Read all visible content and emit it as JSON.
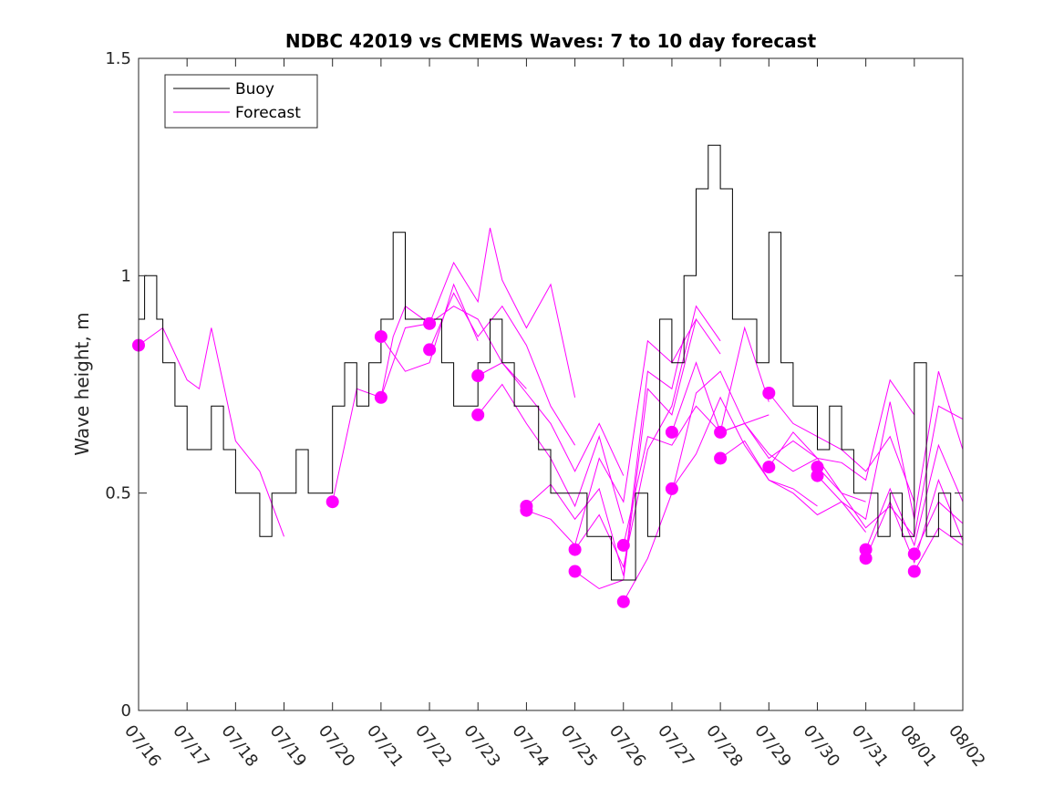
{
  "chart_data": {
    "type": "line",
    "title": "NDBC 42019 vs CMEMS Waves: 7 to 10 day forecast",
    "ylabel": "Wave height, m",
    "xlabel": "",
    "ylim": [
      0,
      1.5
    ],
    "yticks": [
      0,
      0.5,
      1,
      1.5
    ],
    "ytick_labels": [
      "0",
      "0.5",
      "1",
      "1.5"
    ],
    "xlim": [
      "07/16",
      "08/02"
    ],
    "xtick_labels": [
      "07/16",
      "07/17",
      "07/18",
      "07/19",
      "07/20",
      "07/21",
      "07/22",
      "07/23",
      "07/24",
      "07/25",
      "07/26",
      "07/27",
      "07/28",
      "07/29",
      "07/30",
      "07/31",
      "08/01",
      "08/02"
    ],
    "legend": {
      "position": "top-left",
      "entries": [
        {
          "name": "Buoy",
          "color": "#000000"
        },
        {
          "name": "Forecast",
          "color": "#ff00ff"
        }
      ]
    },
    "colors": {
      "buoy": "#000000",
      "forecast": "#ff00ff"
    },
    "buoy": {
      "name": "Buoy",
      "x": [
        "07/16 00:00",
        "07/16 03:00",
        "07/16 06:00",
        "07/16 09:00",
        "07/16 12:00",
        "07/16 15:00",
        "07/16 18:00",
        "07/17 00:00",
        "07/17 06:00",
        "07/17 12:00",
        "07/17 18:00",
        "07/18 00:00",
        "07/18 06:00",
        "07/18 12:00",
        "07/18 18:00",
        "07/19 00:00",
        "07/19 06:00",
        "07/19 12:00",
        "07/19 18:00",
        "07/20 00:00",
        "07/20 06:00",
        "07/20 12:00",
        "07/20 18:00",
        "07/21 00:00",
        "07/21 06:00",
        "07/21 12:00",
        "07/21 18:00",
        "07/22 00:00",
        "07/22 06:00",
        "07/22 12:00",
        "07/22 18:00",
        "07/23 00:00",
        "07/23 06:00",
        "07/23 12:00",
        "07/23 18:00",
        "07/24 00:00",
        "07/24 06:00",
        "07/24 12:00",
        "07/24 18:00",
        "07/25 00:00",
        "07/25 06:00",
        "07/25 12:00",
        "07/25 18:00",
        "07/26 00:00",
        "07/26 06:00",
        "07/26 12:00",
        "07/26 18:00",
        "07/27 00:00",
        "07/27 06:00",
        "07/27 12:00",
        "07/27 18:00",
        "07/28 00:00",
        "07/28 06:00",
        "07/28 12:00",
        "07/28 18:00",
        "07/29 00:00",
        "07/29 06:00",
        "07/29 12:00",
        "07/29 18:00",
        "07/30 00:00",
        "07/30 06:00",
        "07/30 12:00",
        "07/30 18:00",
        "07/31 00:00",
        "07/31 06:00",
        "07/31 12:00",
        "07/31 18:00",
        "08/01 00:00",
        "08/01 06:00",
        "08/01 12:00",
        "08/01 18:00",
        "08/02 00:00"
      ],
      "y": [
        0.9,
        1.0,
        1.0,
        0.9,
        0.8,
        0.8,
        0.7,
        0.6,
        0.6,
        0.7,
        0.6,
        0.5,
        0.5,
        0.4,
        0.5,
        0.5,
        0.6,
        0.5,
        0.5,
        0.7,
        0.8,
        0.7,
        0.8,
        0.9,
        1.1,
        0.9,
        0.9,
        0.9,
        0.8,
        0.7,
        0.7,
        0.8,
        0.9,
        0.8,
        0.7,
        0.7,
        0.6,
        0.5,
        0.5,
        0.5,
        0.4,
        0.4,
        0.3,
        0.3,
        0.5,
        0.4,
        0.9,
        0.8,
        1.0,
        1.2,
        1.3,
        1.2,
        0.9,
        0.9,
        0.8,
        1.1,
        0.8,
        0.7,
        0.7,
        0.6,
        0.7,
        0.6,
        0.5,
        0.5,
        0.4,
        0.5,
        0.4,
        0.8,
        0.4,
        0.5,
        0.4,
        0.3
      ]
    },
    "forecast_series": [
      {
        "x": [
          "07/16 00:00",
          "07/16 12:00",
          "07/17 00:00",
          "07/17 06:00",
          "07/17 12:00",
          "07/18 00:00",
          "07/18 12:00",
          "07/19 00:00"
        ],
        "y": [
          0.84,
          0.88,
          0.76,
          0.74,
          0.88,
          0.62,
          0.55,
          0.4
        ],
        "marker_y": 0.84
      },
      {
        "x": [
          "07/20 00:00",
          "07/20 12:00",
          "07/21 00:00",
          "07/21 06:00",
          "07/21 12:00",
          "07/22 00:00"
        ],
        "y": [
          0.48,
          0.74,
          0.72,
          0.86,
          0.93,
          0.89
        ],
        "marker_y": 0.48
      },
      {
        "x": [
          "07/21 00:00",
          "07/21 12:00",
          "07/22 00:00",
          "07/22 12:00",
          "07/23 00:00",
          "07/23 12:00",
          "07/24 00:00"
        ],
        "y": [
          0.72,
          0.88,
          0.89,
          0.93,
          0.9,
          0.8,
          0.74
        ],
        "marker_y": 0.72
      },
      {
        "x": [
          "07/21 00:00",
          "07/21 12:00",
          "07/22 00:00",
          "07/22 12:00",
          "07/23 00:00"
        ],
        "y": [
          0.86,
          0.78,
          0.8,
          0.98,
          0.85
        ],
        "marker_y": 0.86
      },
      {
        "x": [
          "07/22 00:00",
          "07/22 12:00",
          "07/23 00:00",
          "07/23 06:00",
          "07/23 12:00",
          "07/24 00:00",
          "07/24 12:00",
          "07/25 00:00"
        ],
        "y": [
          0.89,
          1.03,
          0.94,
          1.11,
          0.99,
          0.88,
          0.98,
          0.72
        ],
        "marker_y": 0.89
      },
      {
        "x": [
          "07/22 00:00",
          "07/22 12:00",
          "07/23 00:00",
          "07/23 12:00",
          "07/24 00:00",
          "07/24 12:00",
          "07/25 00:00"
        ],
        "y": [
          0.83,
          0.96,
          0.86,
          0.93,
          0.84,
          0.7,
          0.61
        ],
        "marker_y": 0.83
      },
      {
        "x": [
          "07/23 00:00",
          "07/23 12:00",
          "07/24 00:00",
          "07/24 12:00",
          "07/25 00:00",
          "07/25 12:00",
          "07/26 00:00"
        ],
        "y": [
          0.77,
          0.8,
          0.73,
          0.66,
          0.55,
          0.66,
          0.54
        ],
        "marker_y": 0.77
      },
      {
        "x": [
          "07/23 00:00",
          "07/23 12:00",
          "07/24 00:00",
          "07/24 12:00",
          "07/25 00:00",
          "07/25 12:00",
          "07/26 00:00"
        ],
        "y": [
          0.68,
          0.75,
          0.66,
          0.58,
          0.47,
          0.63,
          0.43
        ],
        "marker_y": 0.68
      },
      {
        "x": [
          "07/24 00:00",
          "07/24 12:00",
          "07/25 00:00",
          "07/25 12:00",
          "07/26 00:00",
          "07/26 12:00",
          "07/27 00:00",
          "07/27 06:00"
        ],
        "y": [
          0.47,
          0.52,
          0.44,
          0.51,
          0.31,
          0.78,
          0.74,
          0.86
        ],
        "marker_y": 0.47
      },
      {
        "x": [
          "07/24 00:00",
          "07/24 12:00",
          "07/25 00:00",
          "07/25 12:00",
          "07/26 00:00",
          "07/26 12:00",
          "07/27 00:00",
          "07/27 12:00"
        ],
        "y": [
          0.46,
          0.44,
          0.38,
          0.58,
          0.48,
          0.85,
          0.8,
          0.9
        ],
        "marker_y": 0.46
      },
      {
        "x": [
          "07/25 00:00",
          "07/25 12:00",
          "07/26 00:00",
          "07/26 12:00",
          "07/27 00:00",
          "07/27 12:00",
          "07/28 00:00"
        ],
        "y": [
          0.37,
          0.45,
          0.33,
          0.6,
          0.7,
          0.93,
          0.85
        ],
        "marker_y": 0.37
      },
      {
        "x": [
          "07/25 00:00",
          "07/25 12:00",
          "07/26 00:00",
          "07/26 12:00",
          "07/27 00:00",
          "07/27 12:00",
          "07/28 00:00"
        ],
        "y": [
          0.32,
          0.28,
          0.3,
          0.74,
          0.68,
          0.9,
          0.82
        ],
        "marker_y": 0.32
      },
      {
        "x": [
          "07/26 00:00",
          "07/26 12:00",
          "07/27 00:00",
          "07/27 12:00",
          "07/28 00:00",
          "07/28 12:00",
          "07/29 00:00"
        ],
        "y": [
          0.38,
          0.63,
          0.61,
          0.7,
          0.64,
          0.88,
          0.71
        ],
        "marker_y": 0.38
      },
      {
        "x": [
          "07/26 00:00",
          "07/26 12:00",
          "07/27 00:00",
          "07/27 12:00",
          "07/28 00:00",
          "07/28 12:00",
          "07/29 00:00"
        ],
        "y": [
          0.25,
          0.35,
          0.5,
          0.73,
          0.78,
          0.66,
          0.68
        ],
        "marker_y": 0.25
      },
      {
        "x": [
          "07/27 00:00",
          "07/27 12:00",
          "07/28 00:00",
          "07/28 12:00",
          "07/29 00:00",
          "07/29 12:00",
          "07/30 00:00"
        ],
        "y": [
          0.64,
          0.8,
          0.64,
          0.66,
          0.58,
          0.62,
          0.58
        ],
        "marker_y": 0.64
      },
      {
        "x": [
          "07/27 00:00",
          "07/27 12:00",
          "07/28 00:00",
          "07/28 12:00",
          "07/29 00:00",
          "07/29 12:00",
          "07/30 00:00"
        ],
        "y": [
          0.51,
          0.59,
          0.72,
          0.61,
          0.53,
          0.51,
          0.47
        ],
        "marker_y": 0.51
      },
      {
        "x": [
          "07/28 00:00",
          "07/28 12:00",
          "07/29 00:00",
          "07/29 12:00",
          "07/30 00:00",
          "07/30 12:00",
          "07/31 00:00"
        ],
        "y": [
          0.64,
          0.66,
          0.59,
          0.55,
          0.58,
          0.5,
          0.48
        ],
        "marker_y": 0.64
      },
      {
        "x": [
          "07/28 00:00",
          "07/28 12:00",
          "07/29 00:00",
          "07/29 12:00",
          "07/30 00:00",
          "07/30 12:00",
          "07/31 00:00"
        ],
        "y": [
          0.58,
          0.62,
          0.53,
          0.5,
          0.45,
          0.48,
          0.41
        ],
        "marker_y": 0.58
      },
      {
        "x": [
          "07/29 00:00",
          "07/29 12:00",
          "07/30 00:00",
          "07/30 12:00",
          "07/31 00:00",
          "07/31 12:00",
          "08/01 00:00"
        ],
        "y": [
          0.73,
          0.66,
          0.63,
          0.6,
          0.55,
          0.63,
          0.48
        ],
        "marker_y": 0.73
      },
      {
        "x": [
          "07/29 00:00",
          "07/29 12:00",
          "07/30 00:00",
          "07/30 12:00",
          "07/31 00:00",
          "07/31 12:00",
          "08/01 00:00"
        ],
        "y": [
          0.56,
          0.64,
          0.58,
          0.57,
          0.53,
          0.76,
          0.68
        ],
        "marker_y": 0.56
      },
      {
        "x": [
          "07/30 00:00",
          "07/30 12:00",
          "07/31 00:00",
          "07/31 12:00",
          "08/01 00:00",
          "08/01 12:00",
          "08/02 00:00"
        ],
        "y": [
          0.56,
          0.5,
          0.42,
          0.47,
          0.4,
          0.7,
          0.67
        ],
        "marker_y": 0.56
      },
      {
        "x": [
          "07/30 00:00",
          "07/30 12:00",
          "07/31 00:00",
          "07/31 12:00",
          "08/01 00:00",
          "08/01 12:00",
          "08/02 00:00"
        ],
        "y": [
          0.54,
          0.48,
          0.44,
          0.71,
          0.44,
          0.78,
          0.6
        ],
        "marker_y": 0.54
      },
      {
        "x": [
          "07/31 00:00",
          "07/31 12:00",
          "08/01 00:00",
          "08/01 12:00",
          "08/02 00:00"
        ],
        "y": [
          0.37,
          0.51,
          0.38,
          0.61,
          0.48
        ],
        "marker_y": 0.37
      },
      {
        "x": [
          "07/31 00:00",
          "07/31 12:00",
          "08/01 00:00",
          "08/01 12:00",
          "08/02 00:00"
        ],
        "y": [
          0.35,
          0.48,
          0.34,
          0.53,
          0.39
        ],
        "marker_y": 0.35
      },
      {
        "x": [
          "08/01 00:00",
          "08/01 12:00",
          "08/02 00:00"
        ],
        "y": [
          0.36,
          0.48,
          0.43
        ],
        "marker_y": 0.36
      },
      {
        "x": [
          "08/01 00:00",
          "08/01 12:00",
          "08/02 00:00"
        ],
        "y": [
          0.32,
          0.42,
          0.38
        ],
        "marker_y": 0.32
      }
    ]
  }
}
